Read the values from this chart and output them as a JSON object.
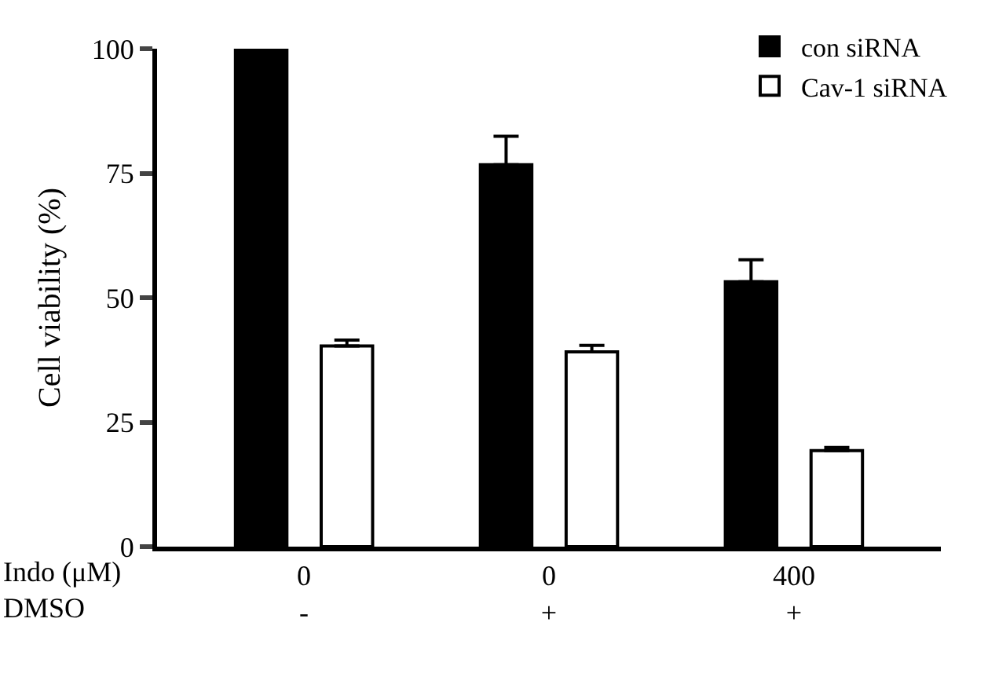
{
  "chart_data": {
    "type": "bar",
    "ylabel": "Cell viability (%)",
    "categories": [
      "0\n-",
      "0\n+",
      "400\n+"
    ],
    "series": [
      {
        "name": "con siRNA",
        "color": "#000000",
        "values": [
          100,
          76.7,
          53.2
        ],
        "errors": [
          null,
          [
            76.7,
            82.4
          ],
          [
            53.2,
            57.6
          ]
        ]
      },
      {
        "name": "Cav-1 siRNA",
        "color": "#ffffff",
        "values": [
          40.3,
          39.1,
          19.3
        ],
        "errors": [
          [
            40.3,
            41.5
          ],
          [
            39.1,
            40.4
          ],
          [
            19.3,
            19.9
          ]
        ]
      }
    ],
    "annotations": [
      "Indo (μM)",
      "DMSO"
    ],
    "ylim": [
      0,
      100
    ],
    "yticks": [
      0,
      25,
      50,
      75,
      100
    ],
    "legend": "top right"
  }
}
